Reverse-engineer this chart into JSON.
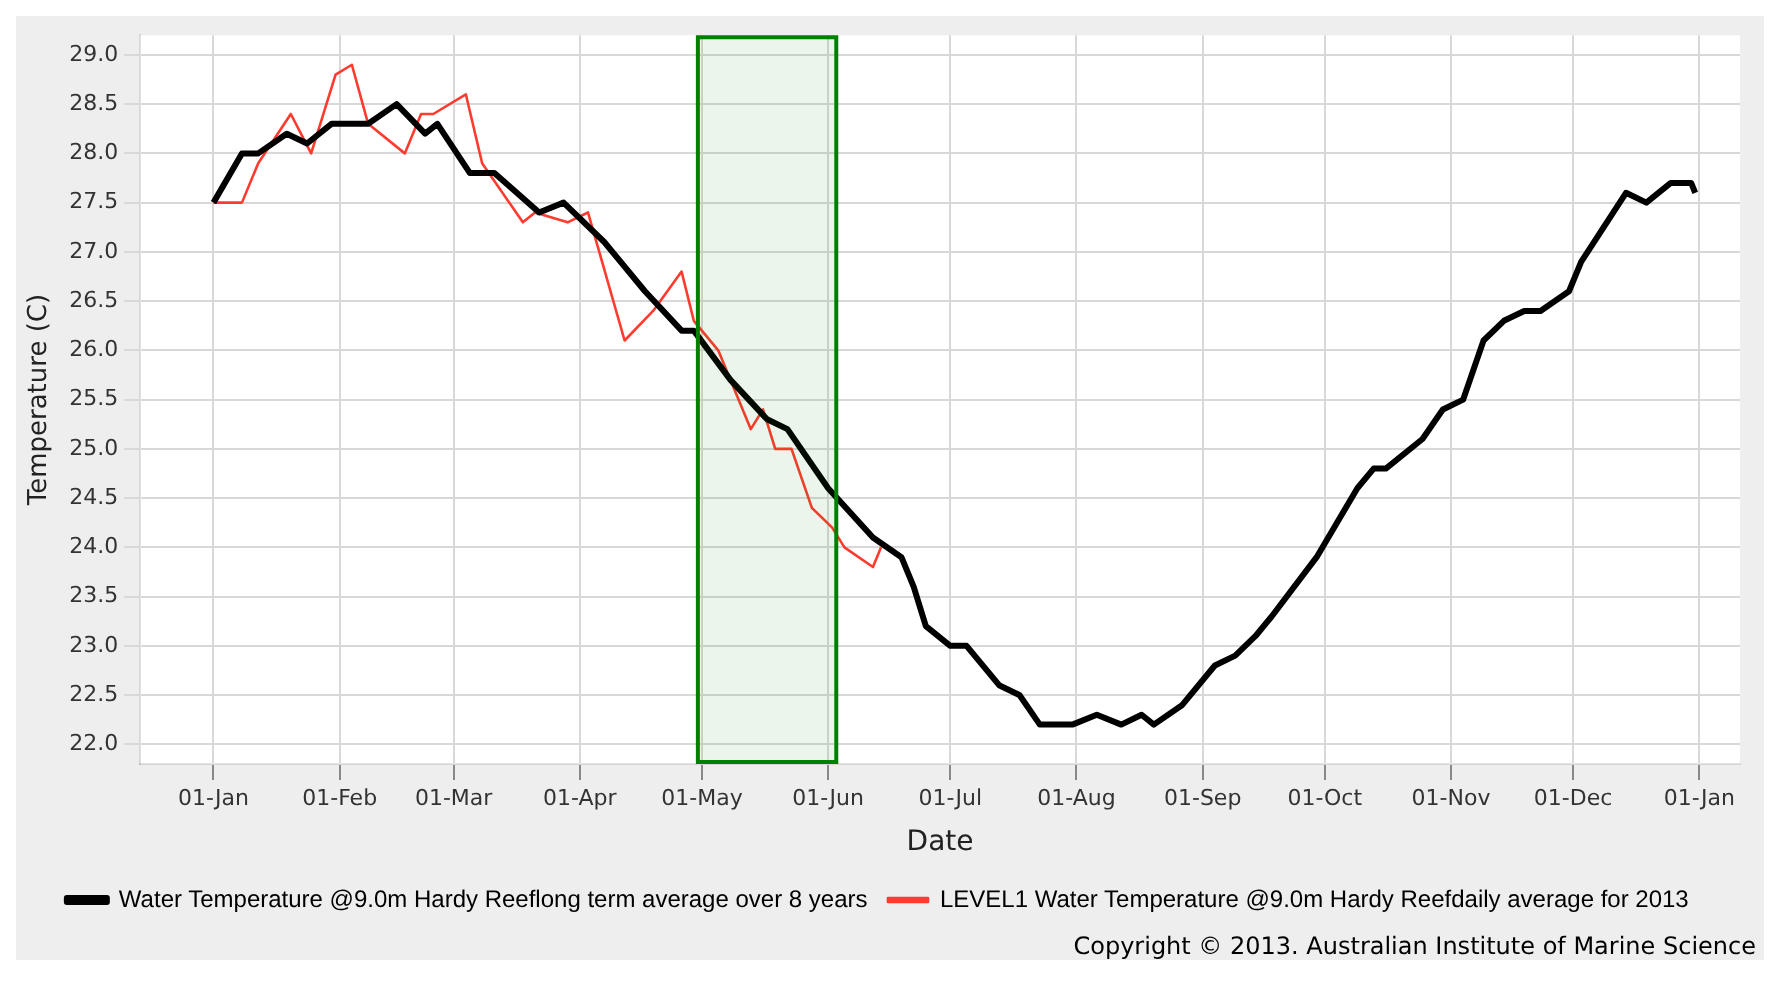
{
  "chart_data": {
    "type": "line",
    "xlabel": "Date",
    "ylabel": "Temperature (C)",
    "xlim": [
      "2012-12-14",
      "2014-01-11"
    ],
    "ylim": [
      21.8,
      29.2
    ],
    "xticks": [
      {
        "value": "2013-01-01",
        "label": "01-Jan"
      },
      {
        "value": "2013-02-01",
        "label": "01-Feb"
      },
      {
        "value": "2013-03-01",
        "label": "01-Mar"
      },
      {
        "value": "2013-04-01",
        "label": "01-Apr"
      },
      {
        "value": "2013-05-01",
        "label": "01-May"
      },
      {
        "value": "2013-06-01",
        "label": "01-Jun"
      },
      {
        "value": "2013-07-01",
        "label": "01-Jul"
      },
      {
        "value": "2013-08-01",
        "label": "01-Aug"
      },
      {
        "value": "2013-09-01",
        "label": "01-Sep"
      },
      {
        "value": "2013-10-01",
        "label": "01-Oct"
      },
      {
        "value": "2013-11-01",
        "label": "01-Nov"
      },
      {
        "value": "2013-12-01",
        "label": "01-Dec"
      },
      {
        "value": "2014-01-01",
        "label": "01-Jan"
      }
    ],
    "yticks": [
      {
        "value": 22,
        "label": "22.0"
      },
      {
        "value": 22.5,
        "label": "22.5"
      },
      {
        "value": 23,
        "label": "23.0"
      },
      {
        "value": 23.5,
        "label": "23.5"
      },
      {
        "value": 24,
        "label": "24.0"
      },
      {
        "value": 24.5,
        "label": "24.5"
      },
      {
        "value": 25,
        "label": "25.0"
      },
      {
        "value": 25.5,
        "label": "25.5"
      },
      {
        "value": 26,
        "label": "26.0"
      },
      {
        "value": 26.5,
        "label": "26.5"
      },
      {
        "value": 27,
        "label": "27.0"
      },
      {
        "value": 27.5,
        "label": "27.5"
      },
      {
        "value": 28,
        "label": "28.0"
      },
      {
        "value": 28.5,
        "label": "28.5"
      },
      {
        "value": 29,
        "label": "29.0"
      }
    ],
    "grid": true,
    "legend": "bottom",
    "marker": "none",
    "line_style": "solid",
    "bands": [
      {
        "axis": "x",
        "from": "2013-04-30",
        "to": "2013-06-03",
        "color": "#008000"
      }
    ],
    "annotations": [
      "Copyright © 2013. Australian Institute of Marine Science"
    ],
    "series": [
      {
        "name": "Water Temperature @9.0m Hardy Reeflong term average over 8 years",
        "color": "#000000",
        "x": [
          "2013-01-01",
          "2013-01-08",
          "2013-01-12",
          "2013-01-19",
          "2013-01-24",
          "2013-01-30",
          "2013-02-08",
          "2013-02-15",
          "2013-02-22",
          "2013-02-25",
          "2013-03-05",
          "2013-03-11",
          "2013-03-22",
          "2013-03-28",
          "2013-04-07",
          "2013-04-17",
          "2013-04-26",
          "2013-04-29",
          "2013-05-08",
          "2013-05-17",
          "2013-05-22",
          "2013-06-01",
          "2013-06-12",
          "2013-06-19",
          "2013-06-22",
          "2013-06-25",
          "2013-07-01",
          "2013-07-05",
          "2013-07-13",
          "2013-07-18",
          "2013-07-23",
          "2013-07-31",
          "2013-08-06",
          "2013-08-12",
          "2013-08-17",
          "2013-08-20",
          "2013-08-27",
          "2013-09-04",
          "2013-09-09",
          "2013-09-14",
          "2013-09-18",
          "2013-09-29",
          "2013-10-09",
          "2013-10-13",
          "2013-10-16",
          "2013-10-25",
          "2013-10-30",
          "2013-11-04",
          "2013-11-09",
          "2013-11-14",
          "2013-11-19",
          "2013-11-23",
          "2013-11-30",
          "2013-12-03",
          "2013-12-14",
          "2013-12-19",
          "2013-12-25",
          "2013-12-30",
          "2013-12-31"
        ],
        "values": [
          27.5,
          28.0,
          28.0,
          28.2,
          28.1,
          28.3,
          28.3,
          28.5,
          28.2,
          28.3,
          27.8,
          27.8,
          27.4,
          27.5,
          27.1,
          26.6,
          26.2,
          26.2,
          25.7,
          25.3,
          25.2,
          24.6,
          24.1,
          23.9,
          23.6,
          23.2,
          23.0,
          23.0,
          22.6,
          22.5,
          22.2,
          22.2,
          22.3,
          22.2,
          22.3,
          22.2,
          22.4,
          22.8,
          22.9,
          23.1,
          23.3,
          23.9,
          24.6,
          24.8,
          24.8,
          25.1,
          25.4,
          25.5,
          26.1,
          26.3,
          26.4,
          26.4,
          26.6,
          26.9,
          27.6,
          27.5,
          27.7,
          27.7,
          27.6
        ]
      },
      {
        "name": "LEVEL1 Water Temperature @9.0m Hardy Reefdaily average for 2013",
        "color": "#ff3b2f",
        "x": [
          "2013-01-01",
          "2013-01-08",
          "2013-01-12",
          "2013-01-20",
          "2013-01-25",
          "2013-01-31",
          "2013-02-04",
          "2013-02-08",
          "2013-02-17",
          "2013-02-21",
          "2013-02-24",
          "2013-03-04",
          "2013-03-08",
          "2013-03-18",
          "2013-03-21",
          "2013-03-29",
          "2013-04-03",
          "2013-04-12",
          "2013-04-19",
          "2013-04-26",
          "2013-04-29",
          "2013-05-05",
          "2013-05-13",
          "2013-05-16",
          "2013-05-19",
          "2013-05-23",
          "2013-05-28",
          "2013-06-02",
          "2013-06-05",
          "2013-06-12",
          "2013-06-14"
        ],
        "values": [
          27.5,
          27.5,
          27.9,
          28.4,
          28.0,
          28.8,
          28.9,
          28.3,
          28.0,
          28.4,
          28.4,
          28.6,
          27.9,
          27.3,
          27.4,
          27.3,
          27.4,
          26.1,
          26.4,
          26.8,
          26.3,
          26.0,
          25.2,
          25.4,
          25.0,
          25.0,
          24.4,
          24.2,
          24.0,
          23.8,
          24.0
        ]
      }
    ]
  }
}
